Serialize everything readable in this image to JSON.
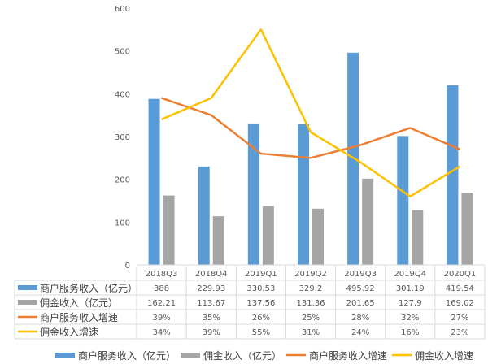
{
  "chart_data": {
    "type": "bar",
    "categories": [
      "2018Q3",
      "2018Q4",
      "2019Q1",
      "2019Q2",
      "2019Q3",
      "2019Q4",
      "2020Q1"
    ],
    "ylim": [
      0,
      600
    ],
    "yticks": [
      "0",
      "100",
      "200",
      "300",
      "400",
      "500",
      "600"
    ],
    "grid": false,
    "legend": "bottom",
    "series": [
      {
        "name": "商户服务收入（亿元）",
        "kind": "bar",
        "color": "#5b9bd5",
        "values": [
          388,
          229.93,
          330.53,
          329.2,
          495.92,
          301.19,
          419.54
        ],
        "labels": [
          "388",
          "229.93",
          "330.53",
          "329.2",
          "495.92",
          "301.19",
          "419.54"
        ]
      },
      {
        "name": "佣金收入（亿元）",
        "kind": "bar",
        "color": "#a5a5a5",
        "values": [
          162.21,
          113.67,
          137.56,
          131.36,
          201.65,
          127.9,
          169.02
        ],
        "labels": [
          "162.21",
          "113.67",
          "137.56",
          "131.36",
          "201.65",
          "127.9",
          "169.02"
        ]
      },
      {
        "name": "商户服务收入增速",
        "kind": "line",
        "color": "#ed7d31",
        "values": [
          0.39,
          0.35,
          0.26,
          0.25,
          0.28,
          0.32,
          0.27
        ],
        "labels": [
          "39%",
          "35%",
          "26%",
          "25%",
          "28%",
          "32%",
          "27%"
        ]
      },
      {
        "name": "佣金收入增速",
        "kind": "line",
        "color": "#ffc000",
        "values": [
          0.34,
          0.39,
          0.55,
          0.31,
          0.24,
          0.16,
          0.23
        ],
        "labels": [
          "34%",
          "39%",
          "55%",
          "31%",
          "24%",
          "16%",
          "23%"
        ]
      }
    ]
  }
}
